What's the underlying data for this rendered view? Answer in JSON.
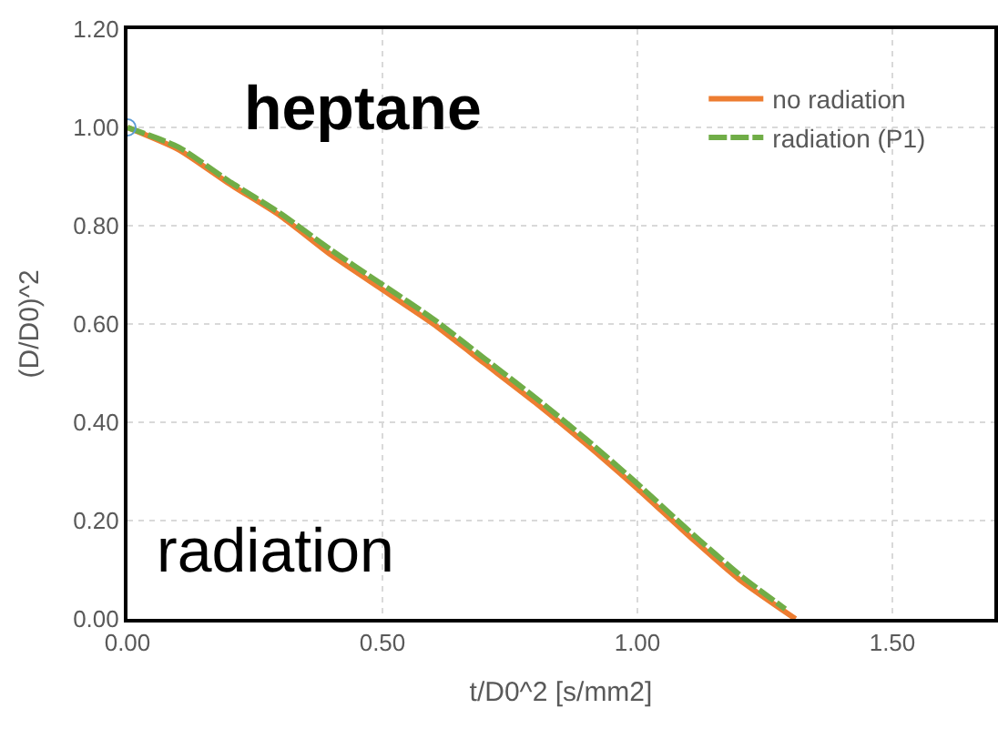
{
  "chart_data": {
    "type": "line",
    "xlabel": "t/D0^2 [s/mm2]",
    "ylabel": "(D/D0)^2",
    "annotations": [
      "heptane",
      "radiation"
    ],
    "xlim": [
      0,
      1.7
    ],
    "xticks": [
      {
        "value": 0,
        "label": "0.00"
      },
      {
        "value": 0.5,
        "label": "0.50"
      },
      {
        "value": 1,
        "label": "1.00"
      },
      {
        "value": 1.5,
        "label": "1.50"
      }
    ],
    "ylim": [
      0,
      1.2
    ],
    "yticks": [
      {
        "value": 0,
        "label": "0.00"
      },
      {
        "value": 0.2,
        "label": "0.20"
      },
      {
        "value": 0.4,
        "label": "0.40"
      },
      {
        "value": 0.6,
        "label": "0.60"
      },
      {
        "value": 0.8,
        "label": "0.80"
      },
      {
        "value": 1,
        "label": "1.00"
      },
      {
        "value": 1.2,
        "label": "1.20"
      }
    ],
    "grid": true,
    "legend": "top right",
    "series": [
      {
        "name": "no radiation",
        "color": "#ed7d31",
        "line_style": "solid",
        "x": [
          0,
          0.1,
          0.2,
          0.3,
          0.4,
          0.5,
          0.6,
          0.7,
          0.8,
          0.9,
          1.0,
          1.1,
          1.2,
          1.31
        ],
        "values": [
          1.0,
          0.955,
          0.885,
          0.82,
          0.74,
          0.67,
          0.6,
          0.52,
          0.44,
          0.355,
          0.265,
          0.17,
          0.08,
          0.0
        ]
      },
      {
        "name": "radiation (P1)",
        "color": "#70ad47",
        "line_style": "dashed",
        "x": [
          0,
          0.1,
          0.2,
          0.3,
          0.4,
          0.5,
          0.6,
          0.7,
          0.8,
          0.9,
          1.0,
          1.1,
          1.2,
          1.29
        ],
        "values": [
          1.0,
          0.96,
          0.89,
          0.825,
          0.75,
          0.68,
          0.61,
          0.53,
          0.45,
          0.365,
          0.275,
          0.18,
          0.09,
          0.02
        ]
      },
      {
        "type": "scatter",
        "marker": "circle",
        "color": "#5b9bd5",
        "x": [
          0
        ],
        "values": [
          1.0
        ]
      }
    ]
  }
}
